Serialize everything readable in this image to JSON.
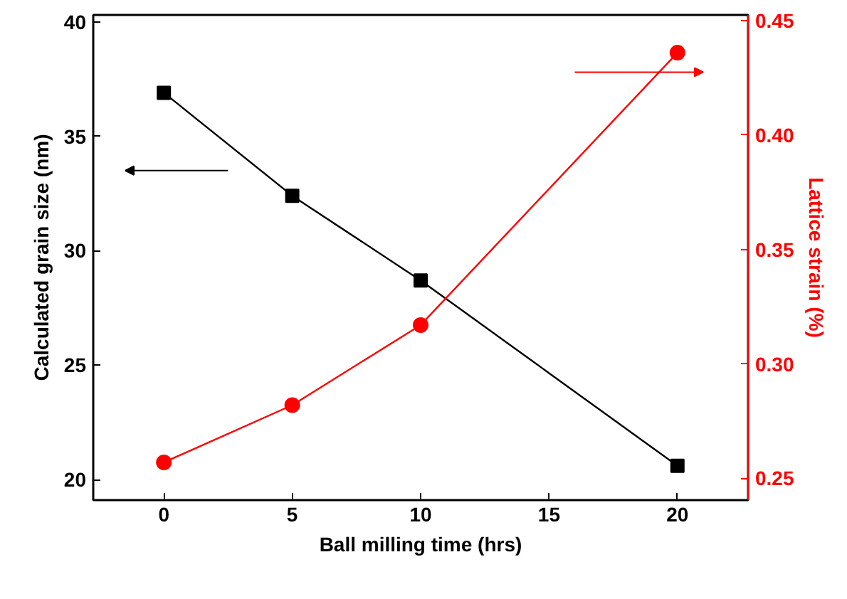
{
  "chart_data": {
    "type": "line",
    "xlabel": "Ball milling time (hrs)",
    "ylabel": "Calculated grain size (nm)",
    "y2label": "Lattice strain (%)",
    "x": [
      0,
      5,
      10,
      20
    ],
    "series": [
      {
        "color": "#000000",
        "marker": "square",
        "values": [
          36.9,
          32.4,
          28.7,
          20.6
        ]
      },
      {
        "color": "#ff0000",
        "marker": "circle",
        "axis": "y2",
        "values": [
          0.257,
          0.282,
          0.317,
          0.436
        ]
      }
    ],
    "xlim": [
      -2.75,
      22.75
    ],
    "xticks": [
      0,
      5,
      10,
      15,
      20
    ],
    "ylim": [
      19.1,
      40.3
    ],
    "yticks": [
      20,
      25,
      30,
      35,
      40
    ],
    "y2lim": [
      0.2405,
      0.4525
    ],
    "y2ticks": [
      {
        "value": 0.25,
        "label": "0.25"
      },
      {
        "value": 0.3,
        "label": "0.30"
      },
      {
        "value": 0.35,
        "label": "0.35"
      },
      {
        "value": 0.4,
        "label": "0.40"
      },
      {
        "value": 0.45,
        "label": "0.45"
      }
    ],
    "line_style": "solid"
  }
}
